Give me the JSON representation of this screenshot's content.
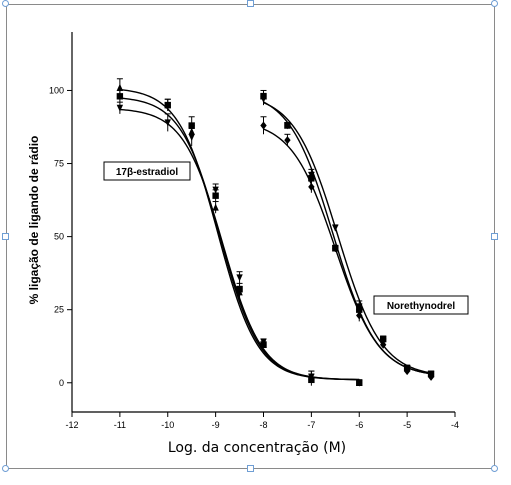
{
  "chart_data": {
    "type": "line",
    "xlabel": "Log. da concentração (M)",
    "ylabel": "% ligação de ligando de rádio",
    "xlim": [
      -12,
      -4
    ],
    "ylim": [
      -10,
      120
    ],
    "xticks": [
      -12,
      -11,
      -10,
      -9,
      -8,
      -7,
      -6,
      -5,
      -4
    ],
    "yticks": [
      0,
      25,
      50,
      75,
      100
    ],
    "grid": false,
    "annotations": [
      {
        "text": "17β-estradiol",
        "x": -10.8,
        "y": 73
      },
      {
        "text": "Norethynodrel",
        "x": -5.6,
        "y": 27
      }
    ],
    "series": [
      {
        "marker": "triangle-up",
        "x": [
          -11,
          -10,
          -9.5,
          -9,
          -8.5,
          -8,
          -7,
          -6
        ],
        "y": [
          101,
          95,
          86,
          60,
          31,
          13,
          2,
          0
        ],
        "err": [
          3,
          2,
          2,
          2,
          2,
          1,
          2,
          1
        ]
      },
      {
        "marker": "square",
        "x": [
          -11,
          -10,
          -9.5,
          -9,
          -8.5,
          -8,
          -7,
          -6
        ],
        "y": [
          98,
          95,
          88,
          64,
          32,
          13,
          1,
          0
        ],
        "err": [
          2,
          2,
          3,
          2,
          2,
          1,
          2,
          1
        ]
      },
      {
        "marker": "triangle-down",
        "x": [
          -11,
          -10,
          -9.5,
          -9,
          -8.5,
          -8,
          -7,
          -6
        ],
        "y": [
          94,
          89,
          84,
          66,
          36,
          14,
          2,
          0
        ],
        "err": [
          2,
          3,
          3,
          2,
          2,
          1,
          2,
          1
        ]
      },
      {
        "marker": "square",
        "x": [
          -8,
          -7.5,
          -7,
          -6.5,
          -6,
          -5.5,
          -5,
          -4.5
        ],
        "y": [
          98,
          88,
          70,
          46,
          25,
          15,
          5,
          3
        ],
        "err": [
          2,
          1,
          2,
          1,
          2,
          1,
          1,
          1
        ]
      },
      {
        "marker": "triangle-down",
        "x": [
          -8,
          -7.5,
          -7,
          -6.5,
          -6,
          -5.5,
          -5,
          -4.5
        ],
        "y": [
          97,
          88,
          71,
          53,
          26,
          14,
          5,
          3
        ],
        "err": [
          2,
          1,
          2,
          1,
          2,
          1,
          1,
          1
        ]
      },
      {
        "marker": "diamond",
        "x": [
          -8,
          -7.5,
          -7,
          -6.5,
          -6,
          -5.5,
          -5,
          -4.5
        ],
        "y": [
          88,
          83,
          67,
          46,
          23,
          13,
          4,
          2
        ],
        "err": [
          3,
          2,
          2,
          1,
          2,
          1,
          1,
          1
        ]
      }
    ],
    "curves": [
      {
        "top": 101,
        "bottom": 1,
        "logEC50": -8.95,
        "hill": 1.05,
        "xmin": -11,
        "xmax": -6
      },
      {
        "top": 98,
        "bottom": 1,
        "logEC50": -8.9,
        "hill": 1.05,
        "xmin": -11,
        "xmax": -6
      },
      {
        "top": 94,
        "bottom": 1,
        "logEC50": -8.85,
        "hill": 1.05,
        "xmin": -11,
        "xmax": -6
      },
      {
        "top": 100,
        "bottom": 2,
        "logEC50": -6.55,
        "hill": 0.95,
        "xmin": -8,
        "xmax": -4.5
      },
      {
        "top": 99,
        "bottom": 2,
        "logEC50": -6.45,
        "hill": 0.95,
        "xmin": -8,
        "xmax": -4.5
      },
      {
        "top": 90,
        "bottom": 2,
        "logEC50": -6.5,
        "hill": 0.95,
        "xmin": -8,
        "xmax": -4.5
      }
    ]
  }
}
